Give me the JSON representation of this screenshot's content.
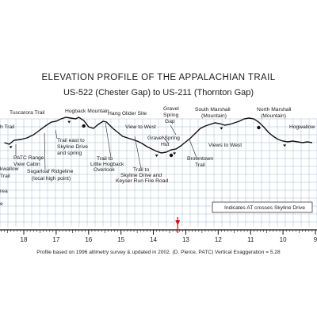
{
  "title": "ELEVATION PROFILE OF THE APPALACHIAN TRAIL",
  "subtitle": "US-522 (Chester Gap)  to  US-211 (Thornton Gap)",
  "footer": "Profile based on 1996 altimetry survey & updated in 2002. (D. Pierce, PATC)   Vertical Exaggeration = 5.28",
  "legend": "Indicates AT crosses Skyline Drive",
  "mile_axis": {
    "labels": [
      "18",
      "17",
      "16",
      "15",
      "14",
      "13",
      "12",
      "11",
      "10",
      "9"
    ],
    "marker_at": 13.25
  },
  "left_cut_labels": [
    "h Trail",
    "kwallow",
    "Trail",
    "rea",
    "e"
  ],
  "labels": {
    "tuscarora_trail": "Tuscarora Trail",
    "hogback_mountain": "Hogback Mountain",
    "hang_glider_site": "Hang Glider Site",
    "gravel_spring_gap": [
      "Gravel",
      "Spring",
      "Gap"
    ],
    "south_marshall": [
      "South Marshall",
      "(Mountain)"
    ],
    "north_marshall": [
      "North Marshall",
      "(Mountain)"
    ],
    "hogwallow": "Hogwallow",
    "view_to_west_1": "View to West",
    "view_to_west_2": "Views to West",
    "patc_cabin": [
      "PATC Range",
      "View Cabin"
    ],
    "sugarloaf": [
      "Sugarloaf Ridgeline",
      "(local high point)"
    ],
    "trail_east": [
      "Trail east to",
      "Skyline Drive",
      "and spring"
    ],
    "little_hogback": [
      "Trail to",
      "Little Hogback",
      "Overlook"
    ],
    "trail_to_skyline": [
      "Trail to",
      "Skyline Drive and",
      "Keyser Run Fire Road"
    ],
    "gravel_spring_hut": [
      "Gravel Spring",
      "Hut"
    ],
    "browntown": [
      "Browntown",
      "Trail"
    ]
  },
  "colors": {
    "grid": "#9fbcd9",
    "profile": "#111111",
    "marker": "#d6001c"
  },
  "profile_stations": [
    [
      18.6,
      20
    ],
    [
      18.45,
      18
    ],
    [
      18.3,
      23
    ],
    [
      18.1,
      24
    ],
    [
      17.9,
      26
    ],
    [
      17.7,
      30
    ],
    [
      17.5,
      36
    ],
    [
      17.3,
      42
    ],
    [
      17.15,
      46
    ],
    [
      17.0,
      47
    ],
    [
      16.85,
      50
    ],
    [
      16.7,
      52
    ],
    [
      16.55,
      51
    ],
    [
      16.4,
      50
    ],
    [
      16.3,
      52
    ],
    [
      16.15,
      48
    ],
    [
      16.0,
      40
    ],
    [
      15.85,
      38
    ],
    [
      15.7,
      43
    ],
    [
      15.55,
      47
    ],
    [
      15.45,
      46
    ],
    [
      15.35,
      42
    ],
    [
      15.25,
      38
    ],
    [
      15.1,
      33
    ],
    [
      14.95,
      28
    ],
    [
      14.8,
      26
    ],
    [
      14.65,
      24
    ],
    [
      14.5,
      22
    ],
    [
      14.35,
      19
    ],
    [
      14.2,
      15
    ],
    [
      14.05,
      12
    ],
    [
      13.9,
      9
    ],
    [
      13.75,
      7
    ],
    [
      13.6,
      8
    ],
    [
      13.45,
      11
    ],
    [
      13.3,
      12
    ],
    [
      13.15,
      16
    ],
    [
      13.0,
      21
    ],
    [
      12.85,
      26
    ],
    [
      12.7,
      32
    ],
    [
      12.55,
      38
    ],
    [
      12.4,
      41
    ],
    [
      12.25,
      43
    ],
    [
      12.1,
      45
    ],
    [
      11.95,
      44
    ],
    [
      11.8,
      42
    ],
    [
      11.65,
      43
    ],
    [
      11.5,
      45
    ],
    [
      11.35,
      47
    ],
    [
      11.2,
      50
    ],
    [
      11.05,
      51
    ],
    [
      10.9,
      50
    ],
    [
      10.75,
      46
    ],
    [
      10.6,
      40
    ],
    [
      10.45,
      33
    ],
    [
      10.3,
      28
    ],
    [
      10.15,
      24
    ],
    [
      10.0,
      22
    ],
    [
      9.85,
      21
    ],
    [
      9.7,
      22
    ],
    [
      9.55,
      21
    ],
    [
      9.4,
      20
    ],
    [
      9.25,
      21
    ],
    [
      9.1,
      20
    ]
  ],
  "skyline_crossings": [
    18.4,
    16.6,
    13.9,
    13.35,
    11.9,
    9.95
  ],
  "gaps_markers": [
    16.15,
    13.45,
    10.75
  ]
}
